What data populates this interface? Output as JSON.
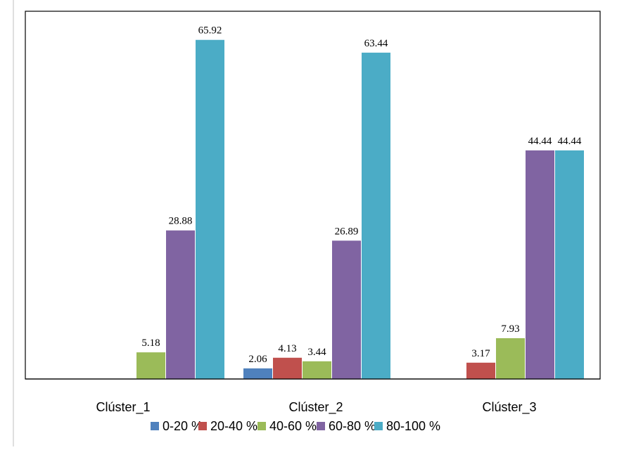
{
  "chart_data": {
    "type": "bar",
    "categories": [
      "Clúster_1",
      "Clúster_2",
      "Clúster_3"
    ],
    "series": [
      {
        "name": "0-20 %",
        "color": "#4F81BD",
        "values": [
          null,
          2.06,
          null
        ]
      },
      {
        "name": "20-40 %",
        "color": "#C0504D",
        "values": [
          null,
          4.13,
          3.17
        ]
      },
      {
        "name": "40-60 %",
        "color": "#9BBB59",
        "values": [
          5.18,
          3.44,
          7.93
        ]
      },
      {
        "name": "60-80 %",
        "color": "#8064A2",
        "values": [
          28.88,
          26.89,
          44.44
        ]
      },
      {
        "name": "80-100 %",
        "color": "#4BACC6",
        "values": [
          65.92,
          63.44,
          44.44
        ]
      }
    ],
    "data_labels": {
      "show": true,
      "text": [
        [
          null,
          "2.06",
          null
        ],
        [
          null,
          "4.13",
          "3.17"
        ],
        [
          "5.18",
          "3.44",
          "7.93"
        ],
        [
          "28.88",
          "26.89",
          "44.44"
        ],
        [
          "65.92",
          "63.44",
          "44.44"
        ]
      ]
    },
    "ylim": [
      0,
      70
    ],
    "grid": false,
    "legend_position": "bottom",
    "title": "",
    "xlabel": "",
    "ylabel": ""
  }
}
